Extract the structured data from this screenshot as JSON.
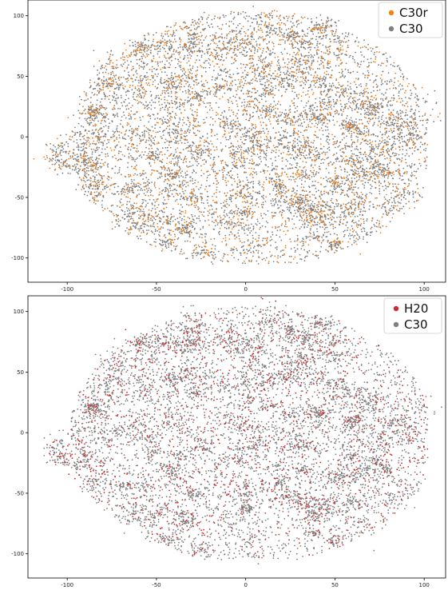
{
  "chart_data": [
    {
      "type": "scatter",
      "title": "",
      "xlabel": "",
      "ylabel": "",
      "xlim": [
        -122,
        112
      ],
      "ylim": [
        -120,
        113
      ],
      "xticks": [
        -100,
        -50,
        0,
        50,
        100
      ],
      "yticks": [
        -100,
        -50,
        0,
        50,
        100
      ],
      "grid": false,
      "legend_position": "top-right",
      "series": [
        {
          "name": "C30r",
          "color": "#ff7f0e"
        },
        {
          "name": "C30",
          "color": "#7f7f7f"
        }
      ]
    },
    {
      "type": "scatter",
      "title": "",
      "xlabel": "",
      "ylabel": "",
      "xlim": [
        -122,
        112
      ],
      "ylim": [
        -120,
        113
      ],
      "xticks": [
        -100,
        -50,
        0,
        50,
        100
      ],
      "yticks": [
        -100,
        -50,
        0,
        50,
        100
      ],
      "grid": false,
      "legend_position": "top-right",
      "series": [
        {
          "name": "H20",
          "color": "#d62728"
        },
        {
          "name": "C30",
          "color": "#7f7f7f"
        }
      ]
    }
  ]
}
